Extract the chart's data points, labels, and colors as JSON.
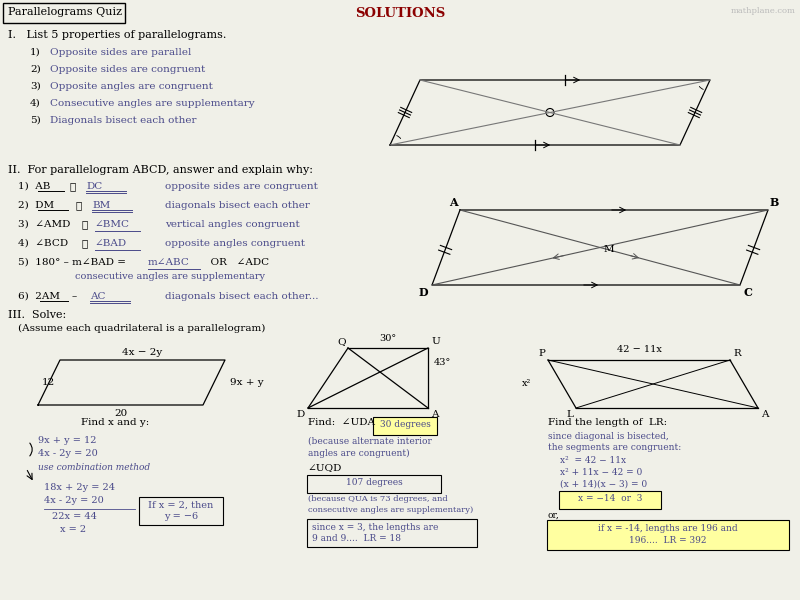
{
  "title_quiz": "Parallelograms Quiz",
  "title_solutions": "SOLUTIONS",
  "watermark": "mathplane.com",
  "section1_title": "I.   List 5 properties of parallelograms.",
  "section1_items": [
    "Opposite sides are parallel",
    "Opposite sides are congruent",
    "Opposite angles are congruent",
    "Consecutive angles are supplementary",
    "Diagonals bisect each other"
  ],
  "section2_title": "II.  For parallelogram ABCD, answer and explain why:",
  "section3_title": "III.  Solve:",
  "section3_sub": "(Assume each quadrilateral is a parallelogram)",
  "text_color": "#4a4a8a",
  "solution_color": "#8b0000",
  "bg_color": "#f0f0e8"
}
